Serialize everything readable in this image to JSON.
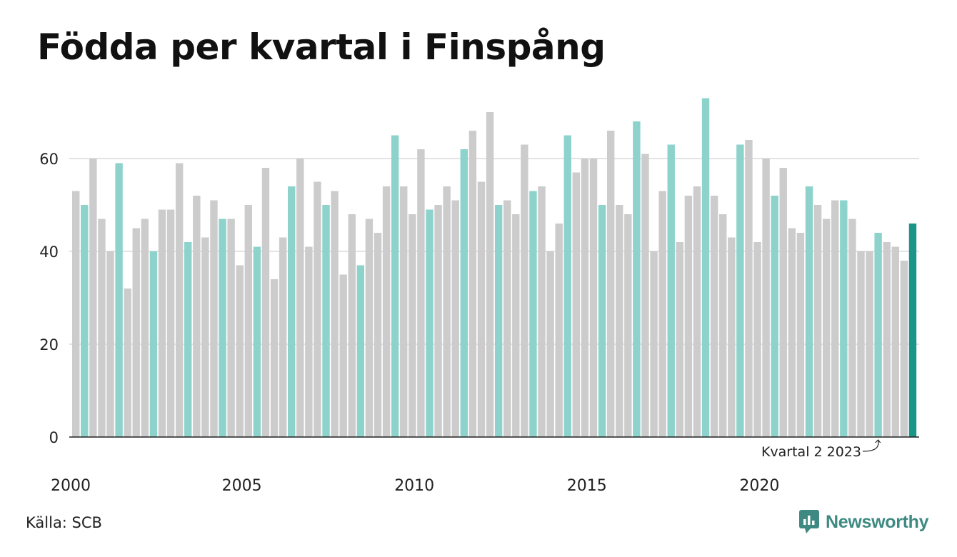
{
  "title": "Födda per kvartal i Finspång",
  "source": "Källa: SCB",
  "brand": {
    "name": "Newsworthy",
    "icon": "newsworthy-logo-icon",
    "color": "#3e8a82"
  },
  "colors": {
    "q2": "#8dd3cc",
    "other": "#cccccc",
    "latest": "#1a9588",
    "grid": "#e3e3e3",
    "axis": "#222222"
  },
  "chart_data": {
    "type": "bar",
    "title": "Födda per kvartal i Finspång",
    "xlabel": "",
    "ylabel": "",
    "ylim": [
      0,
      75
    ],
    "yticks": [
      0,
      20,
      40,
      60
    ],
    "xtick_labels": [
      "2000",
      "2005",
      "2010",
      "2015",
      "2020"
    ],
    "x_start": {
      "year": 2000,
      "quarter": 1
    },
    "grid": true,
    "highlight_quarter": 2,
    "values": [
      53,
      50,
      60,
      47,
      40,
      59,
      32,
      45,
      47,
      40,
      49,
      49,
      59,
      42,
      52,
      43,
      51,
      47,
      47,
      37,
      50,
      41,
      58,
      34,
      43,
      54,
      60,
      41,
      55,
      50,
      53,
      35,
      48,
      37,
      47,
      44,
      54,
      65,
      54,
      48,
      62,
      49,
      50,
      54,
      51,
      62,
      66,
      55,
      70,
      50,
      51,
      48,
      63,
      53,
      54,
      40,
      46,
      65,
      57,
      60,
      60,
      50,
      66,
      50,
      48,
      68,
      61,
      40,
      53,
      63,
      42,
      52,
      54,
      73,
      52,
      48,
      43,
      63,
      64,
      42,
      60,
      52,
      58,
      45,
      44,
      54,
      50,
      47,
      51,
      51,
      47,
      40,
      40,
      44,
      42,
      41,
      38,
      46
    ],
    "annotation": {
      "text": "Kvartal 2 2023",
      "index": 93
    }
  }
}
